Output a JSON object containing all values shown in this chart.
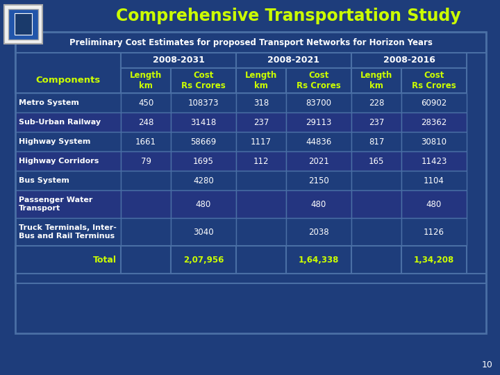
{
  "title": "Comprehensive Transportation Study",
  "subtitle": "Preliminary Cost Estimates for proposed Transport Networks for Horizon Years",
  "bg_color": "#1e3d7b",
  "title_color": "#ccff00",
  "subtitle_color": "#ffffff",
  "header_years": [
    "2008-2031",
    "2008-2021",
    "2008-2016"
  ],
  "col_headers": [
    "Length\nkm",
    "Cost\nRs Crores",
    "Length\nkm",
    "Cost\nRs Crores",
    "Length\nkm",
    "Cost\nRs Crores"
  ],
  "components_color": "#ccff00",
  "components_label": "Components",
  "row_label_color": "#ffffff",
  "data_color": "#ffffff",
  "year_header_color": "#ffffff",
  "col_header_color": "#ccff00",
  "rows": [
    {
      "label": "Metro System",
      "values": [
        "450",
        "108373",
        "318",
        "83700",
        "228",
        "60902"
      ]
    },
    {
      "label": "Sub-Urban Railway",
      "values": [
        "248",
        "31418",
        "237",
        "29113",
        "237",
        "28362"
      ]
    },
    {
      "label": "Highway System",
      "values": [
        "1661",
        "58669",
        "1117",
        "44836",
        "817",
        "30810"
      ]
    },
    {
      "label": "Highway Corridors",
      "values": [
        "79",
        "1695",
        "112",
        "2021",
        "165",
        "11423"
      ]
    },
    {
      "label": "Bus System",
      "values": [
        "",
        "4280",
        "",
        "2150",
        "",
        "1104"
      ]
    },
    {
      "label": "Passenger Water\nTransport",
      "values": [
        "",
        "480",
        "",
        "480",
        "",
        "480"
      ]
    },
    {
      "label": "Truck Terminals, Inter-\nBus and Rail Terminus",
      "values": [
        "",
        "3040",
        "",
        "2038",
        "",
        "1126"
      ]
    }
  ],
  "total_label": "Total",
  "total_values": [
    "",
    "2,07,956",
    "",
    "1,64,338",
    "",
    "1,34,208"
  ],
  "total_label_color": "#ccff00",
  "total_data_color": "#ccff00",
  "page_number": "10",
  "border_color": "#4a6fa5",
  "cell_bg": "#1e3d7b",
  "cell_bg_alt": "#243580",
  "header_bg": "#1a3570"
}
